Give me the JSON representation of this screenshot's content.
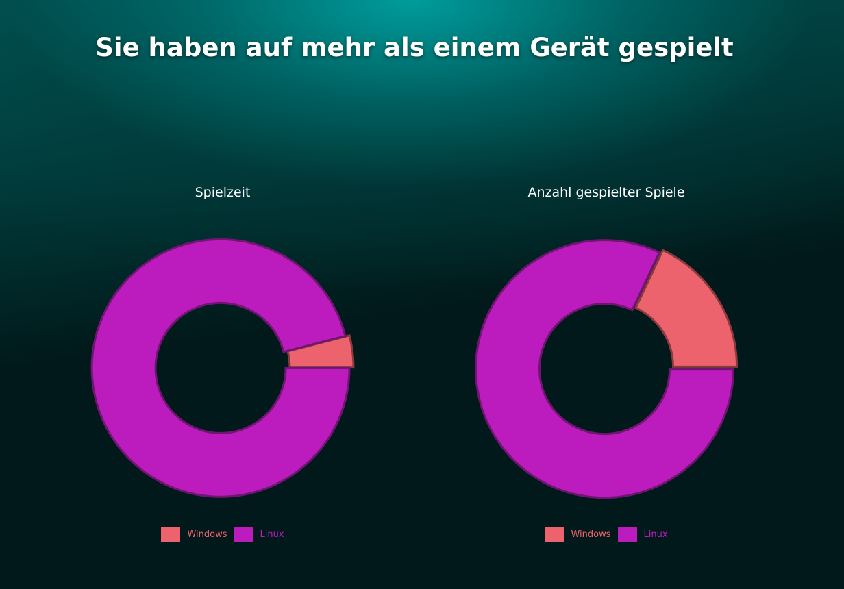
{
  "page_title": "Sie haben auf mehr als einem Gerät gespielt",
  "colors": {
    "Windows": "#ec636d",
    "Linux": "#bc1bbd"
  },
  "chart_data": [
    {
      "type": "pie",
      "variant": "donut",
      "title": "Spielzeit",
      "categories": [
        "Windows",
        "Linux"
      ],
      "values": [
        4,
        96
      ],
      "unit": "%",
      "legend": "bottom"
    },
    {
      "type": "pie",
      "variant": "donut",
      "title": "Anzahl gespielter Spiele",
      "categories": [
        "Windows",
        "Linux"
      ],
      "values": [
        18,
        82
      ],
      "unit": "%",
      "legend": "bottom"
    }
  ]
}
